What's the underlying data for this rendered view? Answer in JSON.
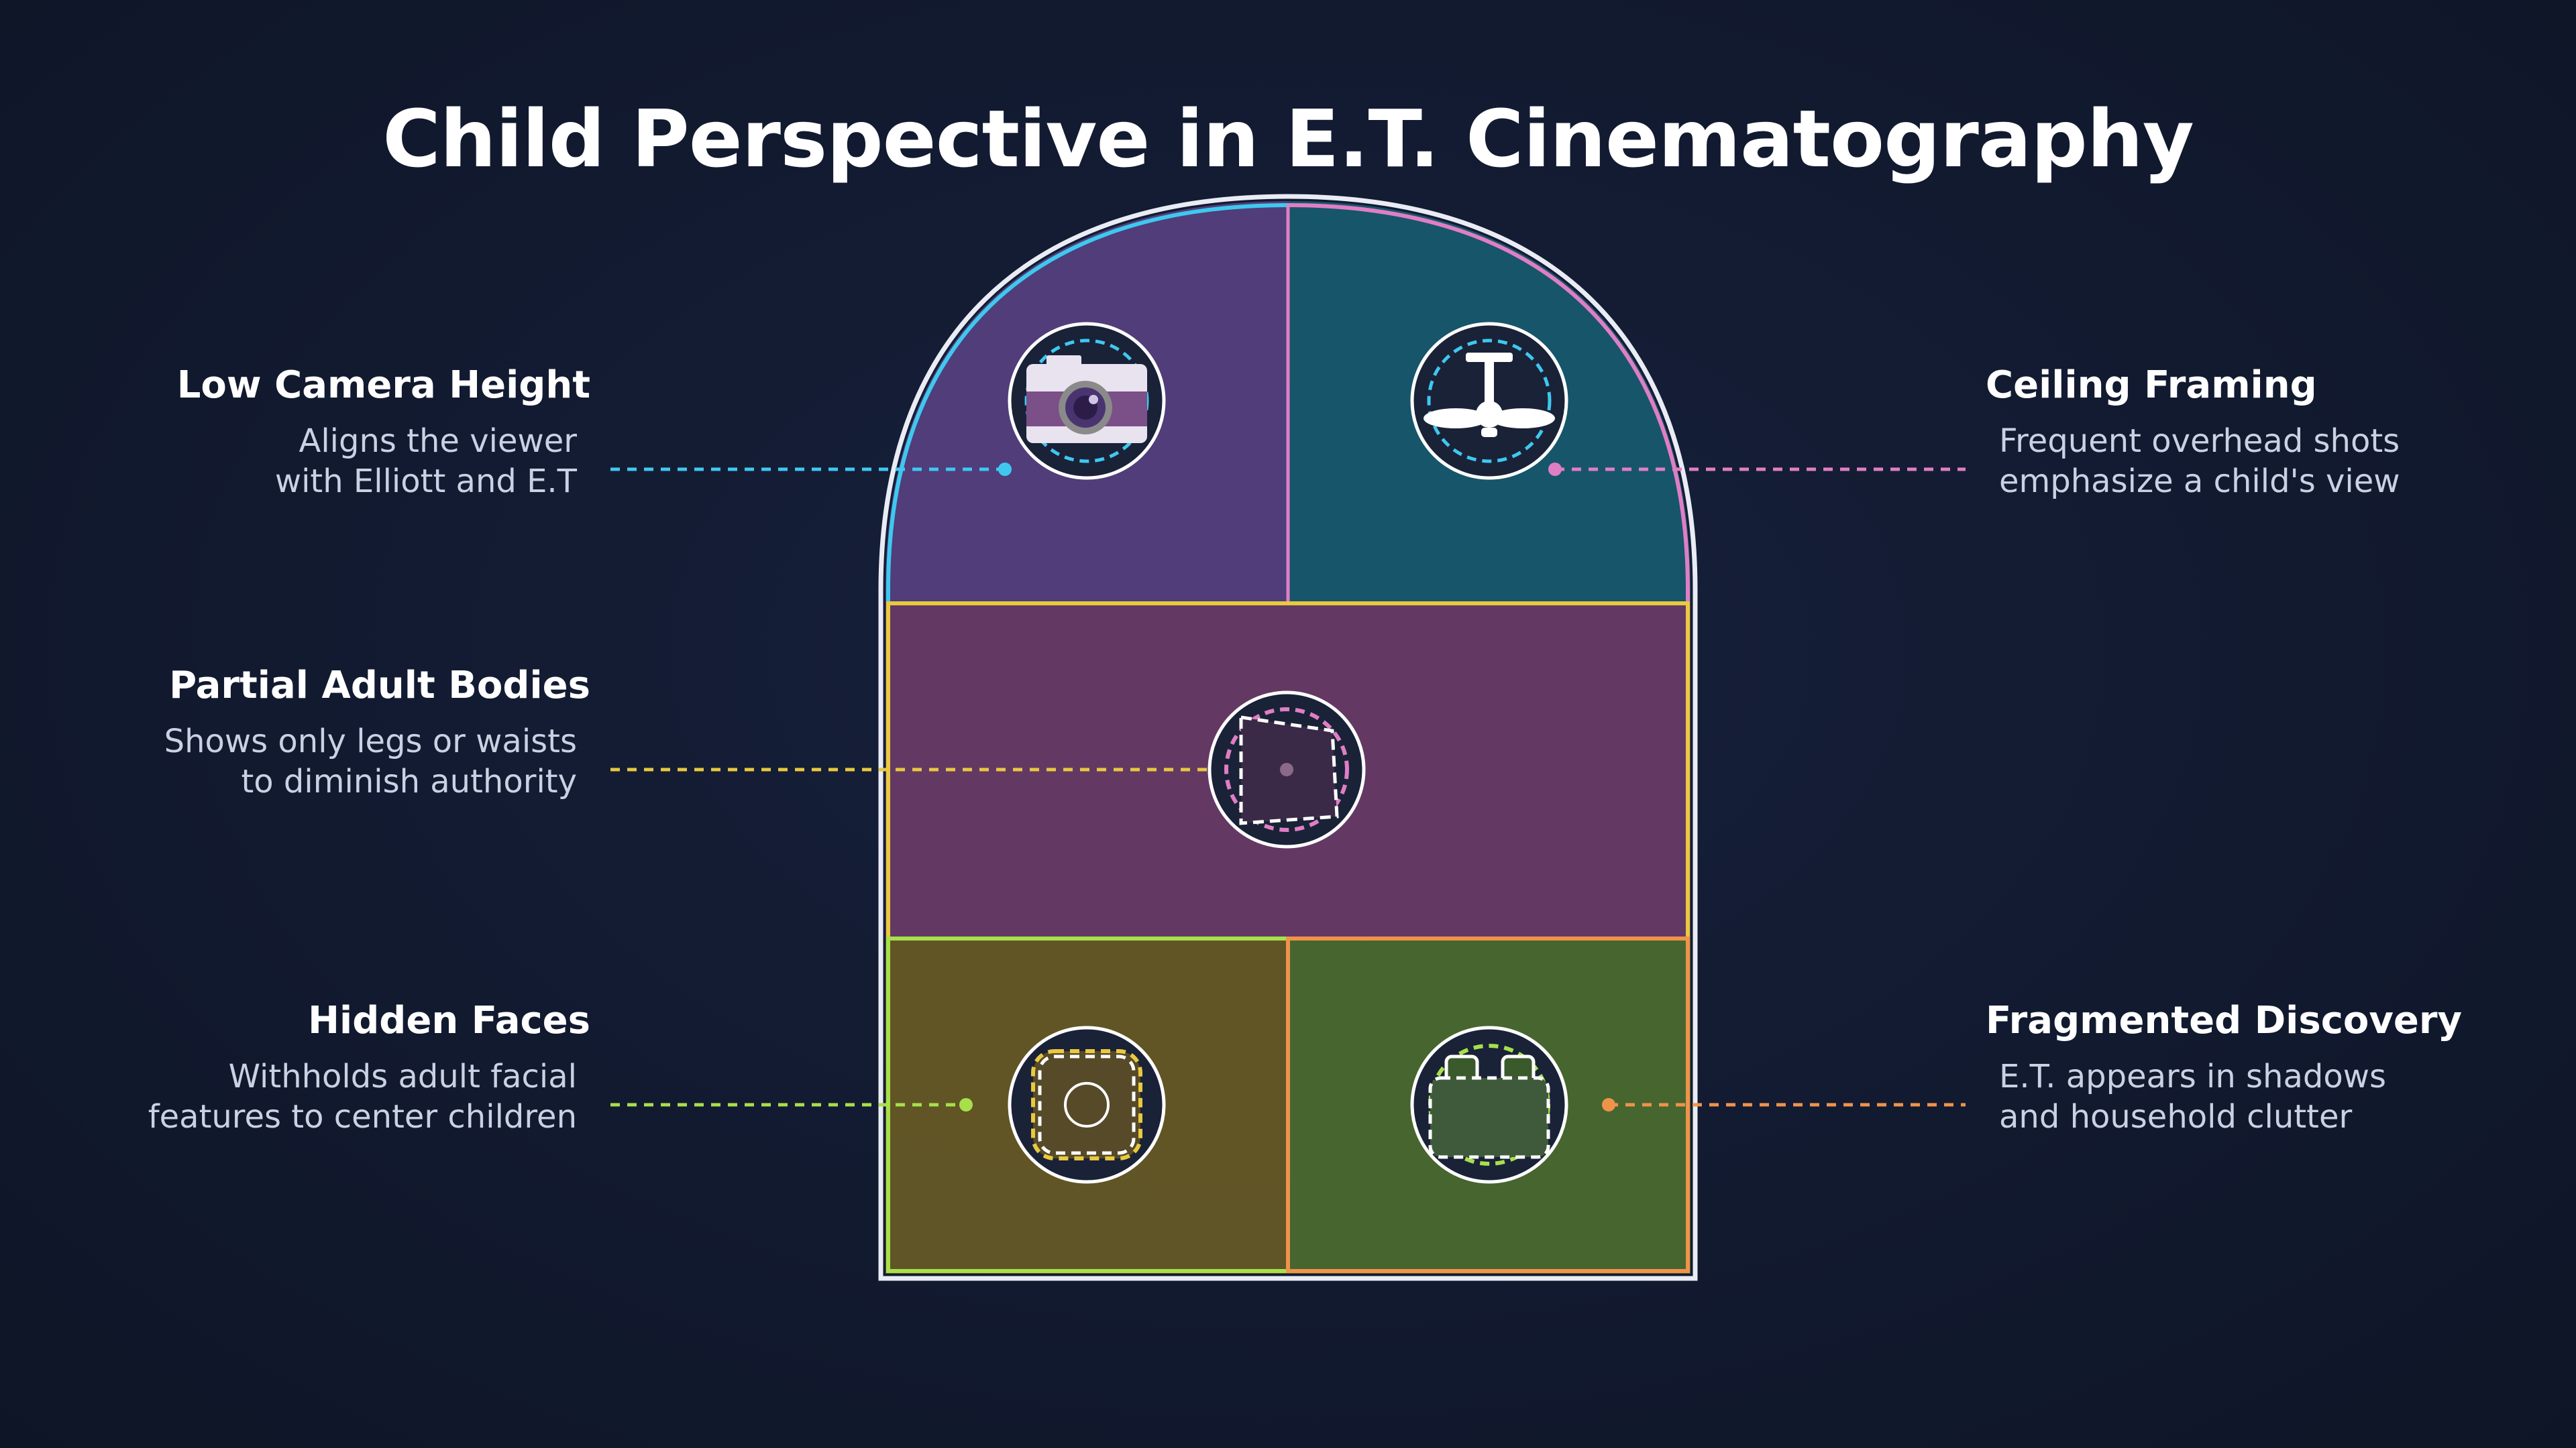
{
  "title": "Child Perspective in E.T. Cinematography",
  "sections": [
    {
      "id": "low-camera-height",
      "heading": "Low Camera Height",
      "line1": "Aligns the viewer",
      "line2": "with Elliott and E.T",
      "icon": "camera-icon",
      "fill": "#533f7d",
      "accent": "#3fc8ef"
    },
    {
      "id": "ceiling-framing",
      "heading": "Ceiling Framing",
      "line1": "Frequent overhead shots",
      "line2": "emphasize a child's view",
      "icon": "ceiling-fan-icon",
      "fill": "#17586e",
      "accent": "#e07ec4"
    },
    {
      "id": "partial-adult-bodies",
      "heading": "Partial Adult Bodies",
      "line1": "Shows only legs or waists",
      "line2": "to diminish authority",
      "icon": "cropped-frame-icon",
      "fill": "#673b66",
      "accent": "#e8c93f"
    },
    {
      "id": "hidden-faces",
      "heading": "Hidden Faces",
      "line1": "Withholds adult facial",
      "line2": "features to center children",
      "icon": "hidden-face-icon",
      "fill": "#655826",
      "accent": "#a7e04a"
    },
    {
      "id": "fragmented-discovery",
      "heading": "Fragmented Discovery",
      "line1": "E.T. appears in shadows",
      "line2": "and household clutter",
      "icon": "clutter-box-icon",
      "fill": "#4a692f",
      "accent": "#f0934a"
    }
  ]
}
